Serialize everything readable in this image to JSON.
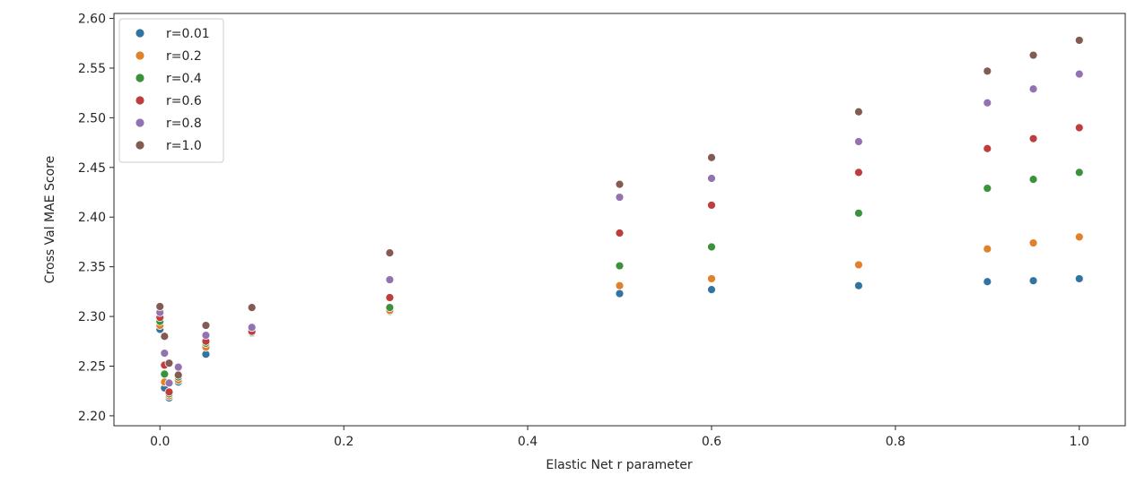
{
  "chart_data": {
    "type": "scatter",
    "title": "",
    "xlabel": "Elastic Net r parameter",
    "ylabel": "Cross Val MAE Score",
    "xlim": [
      -0.05,
      1.05
    ],
    "ylim": [
      2.19,
      2.605
    ],
    "xticks": [
      0.0,
      0.2,
      0.4,
      0.6,
      0.8,
      1.0
    ],
    "xtick_labels": [
      "0.0",
      "0.2",
      "0.4",
      "0.6",
      "0.8",
      "1.0"
    ],
    "yticks": [
      2.2,
      2.25,
      2.3,
      2.35,
      2.4,
      2.45,
      2.5,
      2.55,
      2.6
    ],
    "ytick_labels": [
      "2.20",
      "2.25",
      "2.30",
      "2.35",
      "2.40",
      "2.45",
      "2.50",
      "2.55",
      "2.60"
    ],
    "grid": false,
    "legend_position": "top-left",
    "series": [
      {
        "name": "r=0.01",
        "color": "#3274a1",
        "x": [
          0.0,
          0.005,
          0.01,
          0.02,
          0.05,
          0.1,
          0.25,
          0.5,
          0.6,
          0.76,
          0.9,
          0.95,
          1.0
        ],
        "y": [
          2.287,
          2.228,
          2.218,
          2.234,
          2.262,
          2.283,
          2.305,
          2.323,
          2.327,
          2.331,
          2.335,
          2.336,
          2.338
        ]
      },
      {
        "name": "r=0.2",
        "color": "#e1812c",
        "x": [
          0.0,
          0.005,
          0.01,
          0.02,
          0.05,
          0.1,
          0.25,
          0.5,
          0.6,
          0.76,
          0.9,
          0.95,
          1.0
        ],
        "y": [
          2.291,
          2.234,
          2.22,
          2.236,
          2.269,
          2.284,
          2.306,
          2.331,
          2.338,
          2.352,
          2.368,
          2.374,
          2.38
        ]
      },
      {
        "name": "r=0.4",
        "color": "#3a923a",
        "x": [
          0.0,
          0.005,
          0.01,
          0.02,
          0.05,
          0.1,
          0.25,
          0.5,
          0.6,
          0.76,
          0.9,
          0.95,
          1.0
        ],
        "y": [
          2.295,
          2.242,
          2.222,
          2.239,
          2.273,
          2.284,
          2.309,
          2.351,
          2.37,
          2.404,
          2.429,
          2.438,
          2.445
        ]
      },
      {
        "name": "r=0.6",
        "color": "#c03d3e",
        "x": [
          0.0,
          0.005,
          0.01,
          0.02,
          0.05,
          0.1,
          0.25,
          0.5,
          0.6,
          0.76,
          0.9,
          0.95,
          1.0
        ],
        "y": [
          2.299,
          2.251,
          2.224,
          2.242,
          2.275,
          2.285,
          2.319,
          2.384,
          2.412,
          2.445,
          2.469,
          2.479,
          2.49
        ]
      },
      {
        "name": "r=0.8",
        "color": "#9372b2",
        "x": [
          0.0,
          0.005,
          0.01,
          0.02,
          0.05,
          0.1,
          0.25,
          0.5,
          0.6,
          0.76,
          0.9,
          0.95,
          1.0
        ],
        "y": [
          2.304,
          2.263,
          2.233,
          2.249,
          2.281,
          2.289,
          2.337,
          2.42,
          2.439,
          2.476,
          2.515,
          2.529,
          2.544
        ]
      },
      {
        "name": "r=1.0",
        "color": "#845b53",
        "x": [
          0.0,
          0.005,
          0.01,
          0.02,
          0.05,
          0.1,
          0.25,
          0.5,
          0.6,
          0.76,
          0.9,
          0.95,
          1.0
        ],
        "y": [
          2.31,
          2.28,
          2.253,
          2.241,
          2.291,
          2.309,
          2.364,
          2.433,
          2.46,
          2.506,
          2.547,
          2.563,
          2.578
        ]
      }
    ]
  }
}
